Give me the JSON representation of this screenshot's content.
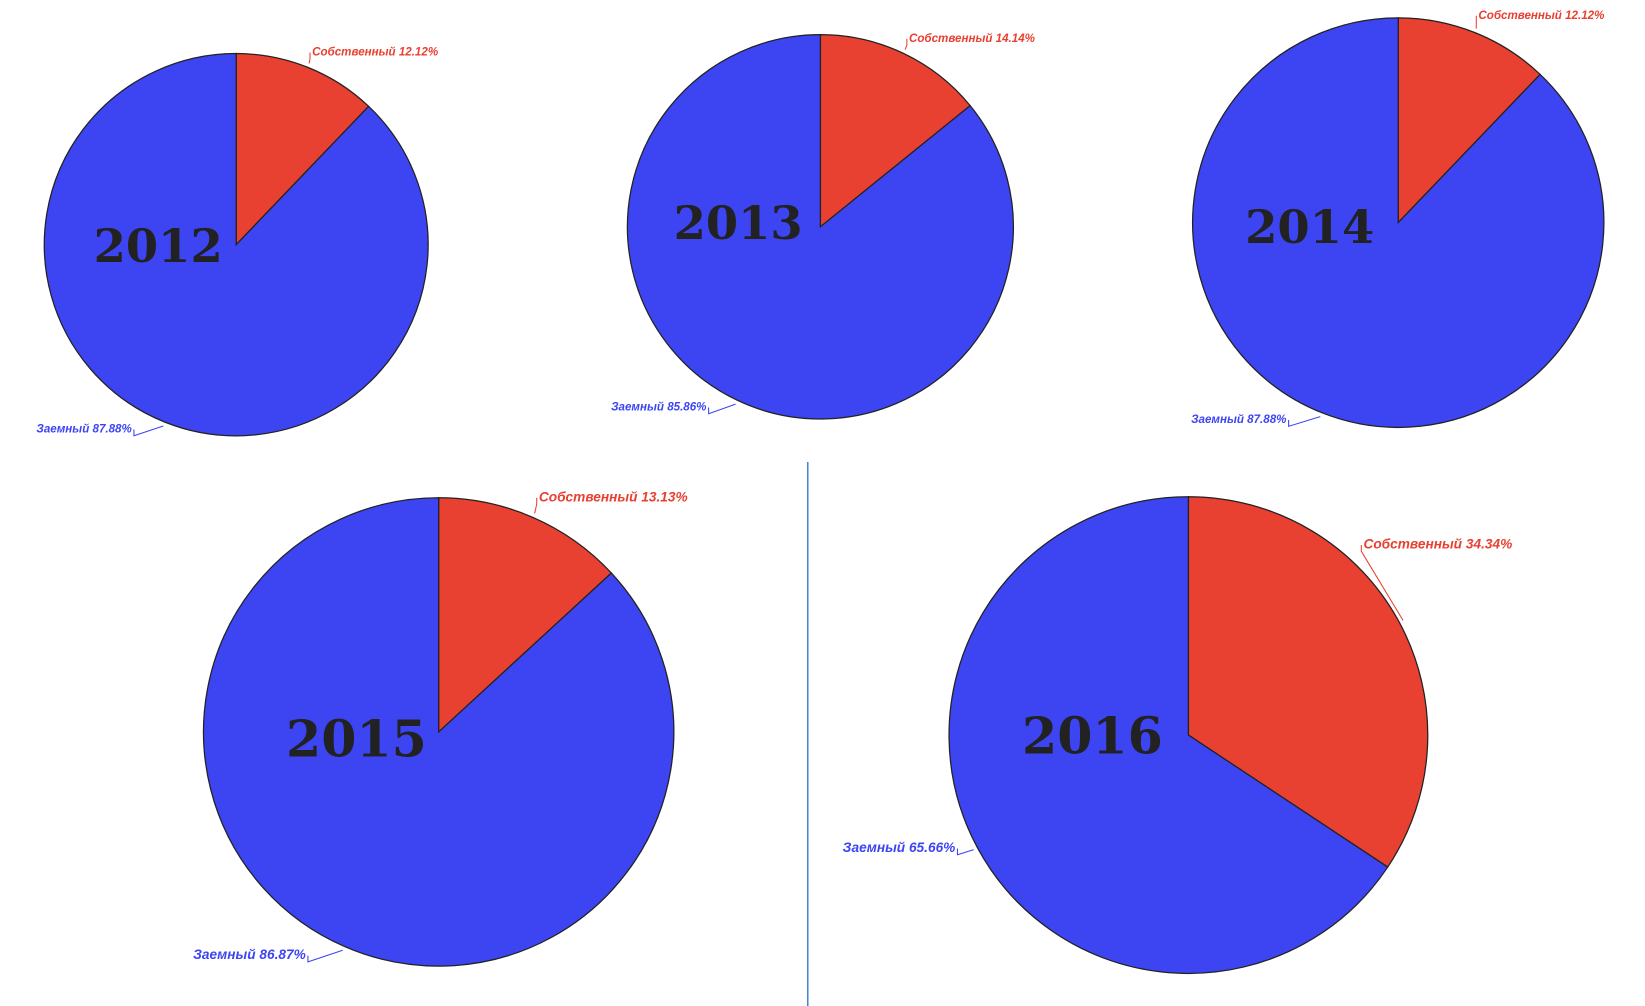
{
  "chart_data": [
    {
      "type": "pie",
      "title": "2012",
      "values": [
        12.12,
        87.88
      ],
      "value_labels": [
        "Собственный 12.12%",
        "Заемный 87.88%"
      ],
      "colors": [
        "#e84031",
        "#3d45f2"
      ]
    },
    {
      "type": "pie",
      "title": "2013",
      "values": [
        14.14,
        85.86
      ],
      "value_labels": [
        "Собственный 14.14%",
        "Заемный 85.86%"
      ],
      "colors": [
        "#e84031",
        "#3d45f2"
      ]
    },
    {
      "type": "pie",
      "title": "2014",
      "values": [
        12.12,
        87.88
      ],
      "value_labels": [
        "Собственный 12.12%",
        "Заемный 87.88%"
      ],
      "colors": [
        "#e84031",
        "#3d45f2"
      ]
    },
    {
      "type": "pie",
      "title": "2015",
      "values": [
        13.13,
        86.87
      ],
      "value_labels": [
        "Собственный 13.13%",
        "Заемный 86.87%"
      ],
      "colors": [
        "#e84031",
        "#3d45f2"
      ]
    },
    {
      "type": "pie",
      "title": "2016",
      "values": [
        34.34,
        65.66
      ],
      "value_labels": [
        "Собственный 34.34%",
        "Заемный 65.66%"
      ],
      "colors": [
        "#e84031",
        "#3d45f2"
      ]
    }
  ]
}
